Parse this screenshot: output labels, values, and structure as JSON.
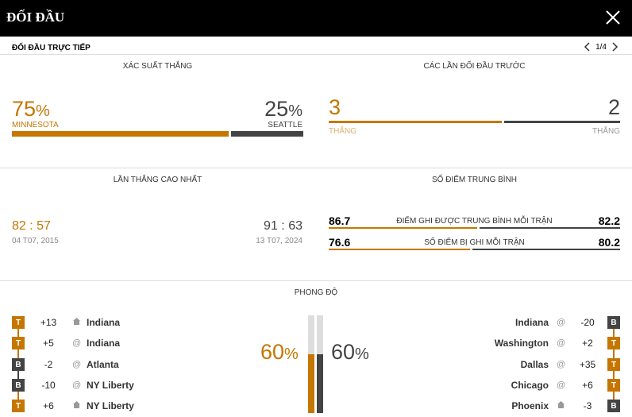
{
  "header": {
    "title": "ĐỐI ĐẦU"
  },
  "subheader": {
    "label": "ĐỐI ĐẦU TRỰC TIẾP",
    "pager": "1/4"
  },
  "win_probability": {
    "title": "XÁC SUẤT THẮNG",
    "left": {
      "value": "75",
      "unit": "%",
      "team": "MINNESOTA",
      "fraction": 0.75
    },
    "right": {
      "value": "25",
      "unit": "%",
      "team": "SEATTLE",
      "fraction": 0.25
    }
  },
  "previous_meetings": {
    "title": "CÁC LẦN ĐỐI ĐẦU TRƯỚC",
    "left": {
      "value": "3",
      "label": "THẮNG"
    },
    "right": {
      "value": "2",
      "label": "THẮNG"
    }
  },
  "biggest_win": {
    "title": "LẦN THẮNG CAO NHẤT",
    "left": {
      "score_a": "82",
      "sep": ":",
      "score_b": "57",
      "date": "04 T07, 2015"
    },
    "right": {
      "score_a": "91",
      "sep": ":",
      "score_b": "63",
      "date": "13 T07, 2024"
    }
  },
  "average_points": {
    "title": "SỐ ĐIỂM TRUNG BÌNH",
    "rows": [
      {
        "left": "86.7",
        "label": "ĐIỂM GHI ĐƯỢC TRUNG BÌNH MỖI TRẬN",
        "right": "82.2",
        "left_val": 86.7,
        "right_val": 82.2
      },
      {
        "left": "76.6",
        "label": "SỐ ĐIỂM BỊ GHI MỖI TRẬN",
        "right": "80.2",
        "left_val": 76.6,
        "right_val": 80.2
      }
    ]
  },
  "form": {
    "title": "PHONG ĐỘ",
    "left_pct": {
      "value": "60",
      "unit": "%",
      "fraction": 0.6
    },
    "right_pct": {
      "value": "60",
      "unit": "%",
      "fraction": 0.6
    },
    "left_games": [
      {
        "result": "T",
        "diff": "+13",
        "venue": "home",
        "opponent": "Indiana"
      },
      {
        "result": "T",
        "diff": "+5",
        "venue": "away",
        "opponent": "Indiana"
      },
      {
        "result": "B",
        "diff": "-2",
        "venue": "away",
        "opponent": "Atlanta"
      },
      {
        "result": "B",
        "diff": "-10",
        "venue": "away",
        "opponent": "NY Liberty"
      },
      {
        "result": "T",
        "diff": "+6",
        "venue": "home",
        "opponent": "NY Liberty"
      }
    ],
    "right_games": [
      {
        "opponent": "Indiana",
        "venue": "away",
        "diff": "-20",
        "result": "B"
      },
      {
        "opponent": "Washington",
        "venue": "away",
        "diff": "+2",
        "result": "T"
      },
      {
        "opponent": "Dallas",
        "venue": "away",
        "diff": "+35",
        "result": "T"
      },
      {
        "opponent": "Chicago",
        "venue": "away",
        "diff": "+6",
        "result": "T"
      },
      {
        "opponent": "Phoenix",
        "venue": "home",
        "diff": "-3",
        "result": "B"
      }
    ]
  },
  "colors": {
    "accent": "#c57600",
    "dark": "#444444"
  }
}
